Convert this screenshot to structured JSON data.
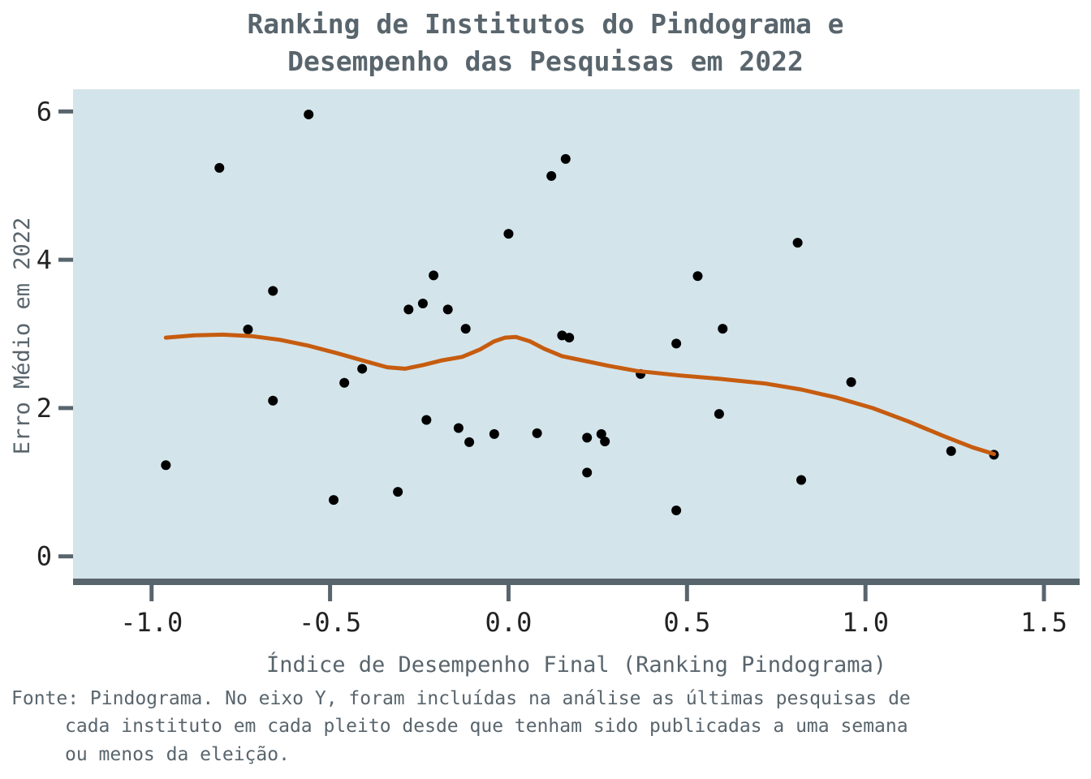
{
  "chart_data": {
    "type": "scatter",
    "title_lines": [
      "Ranking de Institutos do Pindograma e",
      "Desempenho das Pesquisas em 2022"
    ],
    "xlabel": "Índice de Desempenho Final (Ranking Pindograma)",
    "ylabel": "Erro Médio em 2022",
    "caption_lines": [
      "Fonte: Pindograma. No eixo Y, foram incluídas na análise as últimas pesquisas de",
      "cada instituto em cada pleito desde que tenham sido publicadas a uma semana",
      "ou menos da eleição."
    ],
    "xlim": [
      -1.22,
      1.6
    ],
    "ylim": [
      -0.3,
      6.3
    ],
    "x_ticks": [
      -1.0,
      -0.5,
      0.0,
      0.5,
      1.0,
      1.5
    ],
    "x_tick_labels": [
      "-1.0",
      "-0.5",
      "0.0",
      "0.5",
      "1.0",
      "1.5"
    ],
    "y_ticks": [
      0,
      2,
      4,
      6
    ],
    "y_tick_labels": [
      "0",
      "2",
      "4",
      "6"
    ],
    "grid": false,
    "colors": {
      "panel_bg": "#d4e4eb",
      "axis": "#59656d",
      "points": "#000000",
      "trend": "#c65c0f"
    },
    "series": [
      {
        "type": "scatter",
        "points": [
          [
            -0.96,
            1.23
          ],
          [
            -0.81,
            5.24
          ],
          [
            -0.73,
            3.06
          ],
          [
            -0.66,
            3.58
          ],
          [
            -0.66,
            2.1
          ],
          [
            -0.56,
            5.96
          ],
          [
            -0.49,
            0.76
          ],
          [
            -0.46,
            2.34
          ],
          [
            -0.41,
            2.53
          ],
          [
            -0.31,
            0.87
          ],
          [
            -0.28,
            3.33
          ],
          [
            -0.24,
            3.41
          ],
          [
            -0.23,
            1.84
          ],
          [
            -0.21,
            3.79
          ],
          [
            -0.17,
            3.33
          ],
          [
            -0.14,
            1.73
          ],
          [
            -0.12,
            3.07
          ],
          [
            -0.11,
            1.54
          ],
          [
            -0.04,
            1.65
          ],
          [
            0.0,
            4.35
          ],
          [
            0.08,
            1.66
          ],
          [
            0.12,
            5.13
          ],
          [
            0.15,
            2.98
          ],
          [
            0.16,
            5.36
          ],
          [
            0.17,
            2.95
          ],
          [
            0.22,
            1.6
          ],
          [
            0.22,
            1.13
          ],
          [
            0.26,
            1.65
          ],
          [
            0.27,
            1.55
          ],
          [
            0.37,
            2.46
          ],
          [
            0.47,
            0.62
          ],
          [
            0.47,
            2.87
          ],
          [
            0.53,
            3.78
          ],
          [
            0.59,
            1.92
          ],
          [
            0.6,
            3.07
          ],
          [
            0.81,
            4.23
          ],
          [
            0.82,
            1.03
          ],
          [
            0.96,
            2.35
          ],
          [
            1.24,
            1.42
          ],
          [
            1.36,
            1.37
          ]
        ]
      },
      {
        "type": "line",
        "points": [
          [
            -0.96,
            2.95
          ],
          [
            -0.88,
            2.98
          ],
          [
            -0.8,
            2.99
          ],
          [
            -0.72,
            2.97
          ],
          [
            -0.64,
            2.92
          ],
          [
            -0.56,
            2.84
          ],
          [
            -0.48,
            2.74
          ],
          [
            -0.4,
            2.63
          ],
          [
            -0.34,
            2.55
          ],
          [
            -0.29,
            2.53
          ],
          [
            -0.24,
            2.58
          ],
          [
            -0.19,
            2.64
          ],
          [
            -0.13,
            2.69
          ],
          [
            -0.08,
            2.79
          ],
          [
            -0.04,
            2.9
          ],
          [
            -0.01,
            2.95
          ],
          [
            0.02,
            2.96
          ],
          [
            0.06,
            2.9
          ],
          [
            0.1,
            2.8
          ],
          [
            0.15,
            2.7
          ],
          [
            0.2,
            2.65
          ],
          [
            0.28,
            2.57
          ],
          [
            0.36,
            2.5
          ],
          [
            0.48,
            2.44
          ],
          [
            0.6,
            2.39
          ],
          [
            0.72,
            2.33
          ],
          [
            0.82,
            2.25
          ],
          [
            0.92,
            2.14
          ],
          [
            1.02,
            2.0
          ],
          [
            1.12,
            1.82
          ],
          [
            1.22,
            1.62
          ],
          [
            1.3,
            1.47
          ],
          [
            1.36,
            1.38
          ]
        ]
      }
    ]
  }
}
